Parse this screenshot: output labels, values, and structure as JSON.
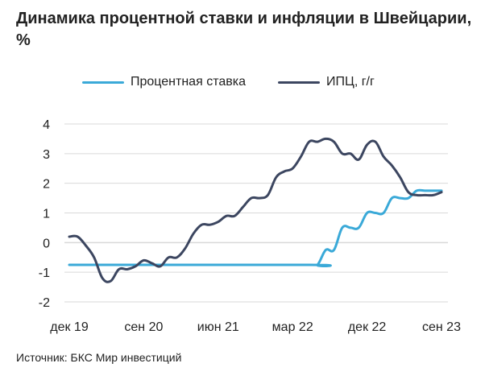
{
  "title": "Динамика процентной ставки и инфляции в Швейцарии, %",
  "source": "Источник: БКС Мир инвестиций",
  "colors": {
    "rate": "#3aa9d8",
    "cpi": "#3c4660",
    "grid": "#d9d9d9"
  },
  "chart_data": {
    "type": "line",
    "title": "Динамика процентной ставки и инфляции в Швейцарии, %",
    "xlabel": "",
    "ylabel": "",
    "ylim": [
      -2,
      4
    ],
    "yticks": [
      4,
      3,
      2,
      1,
      0,
      -1,
      -2
    ],
    "grid": true,
    "legend_position": "top",
    "x_ticks": [
      {
        "label": "дек 19",
        "x": 0
      },
      {
        "label": "сен 20",
        "x": 9
      },
      {
        "label": "июн 21",
        "x": 18
      },
      {
        "label": "мар 22",
        "x": 27
      },
      {
        "label": "дек 22",
        "x": 36
      },
      {
        "label": "сен 23",
        "x": 45
      }
    ],
    "series": [
      {
        "name": "Процентная ставка",
        "color": "#3aa9d8",
        "points": [
          [
            0,
            -0.75
          ],
          [
            29,
            -0.75
          ],
          [
            30,
            -0.75
          ],
          [
            31,
            -0.25
          ],
          [
            32,
            -0.25
          ],
          [
            33,
            0.5
          ],
          [
            34,
            0.5
          ],
          [
            35,
            0.5
          ],
          [
            36,
            1.0
          ],
          [
            37,
            1.0
          ],
          [
            38,
            1.0
          ],
          [
            39,
            1.5
          ],
          [
            40,
            1.5
          ],
          [
            41,
            1.5
          ],
          [
            42,
            1.75
          ],
          [
            43,
            1.75
          ],
          [
            44,
            1.75
          ],
          [
            45,
            1.75
          ]
        ]
      },
      {
        "name": "ИПЦ, г/г",
        "color": "#3c4660",
        "points": [
          [
            0,
            0.2
          ],
          [
            1,
            0.2
          ],
          [
            2,
            -0.1
          ],
          [
            3,
            -0.5
          ],
          [
            4,
            -1.2
          ],
          [
            5,
            -1.3
          ],
          [
            6,
            -0.9
          ],
          [
            7,
            -0.9
          ],
          [
            8,
            -0.8
          ],
          [
            9,
            -0.6
          ],
          [
            10,
            -0.7
          ],
          [
            11,
            -0.8
          ],
          [
            12,
            -0.5
          ],
          [
            13,
            -0.5
          ],
          [
            14,
            -0.2
          ],
          [
            15,
            0.3
          ],
          [
            16,
            0.6
          ],
          [
            17,
            0.6
          ],
          [
            18,
            0.7
          ],
          [
            19,
            0.9
          ],
          [
            20,
            0.9
          ],
          [
            21,
            1.2
          ],
          [
            22,
            1.5
          ],
          [
            23,
            1.5
          ],
          [
            24,
            1.6
          ],
          [
            25,
            2.2
          ],
          [
            26,
            2.4
          ],
          [
            27,
            2.5
          ],
          [
            28,
            2.9
          ],
          [
            29,
            3.4
          ],
          [
            30,
            3.4
          ],
          [
            31,
            3.5
          ],
          [
            32,
            3.4
          ],
          [
            33,
            3.0
          ],
          [
            34,
            3.0
          ],
          [
            35,
            2.8
          ],
          [
            36,
            3.3
          ],
          [
            37,
            3.4
          ],
          [
            38,
            2.9
          ],
          [
            39,
            2.6
          ],
          [
            40,
            2.2
          ],
          [
            41,
            1.7
          ],
          [
            42,
            1.6
          ],
          [
            43,
            1.6
          ],
          [
            44,
            1.6
          ],
          [
            45,
            1.7
          ]
        ]
      }
    ]
  }
}
